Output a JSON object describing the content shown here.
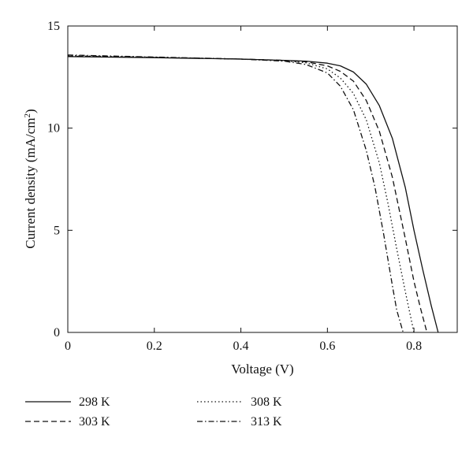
{
  "chart_data": {
    "type": "line",
    "title": "",
    "xlabel": "Voltage (V)",
    "ylabel_main": "Current density (mA/cm",
    "ylabel_sup": "2",
    "ylabel_end": ")",
    "xlim": [
      0,
      0.9
    ],
    "ylim": [
      0,
      15
    ],
    "xticks": [
      0,
      0.2,
      0.4,
      0.6,
      0.8
    ],
    "xtick_labels": [
      "0",
      "0.2",
      "0.4",
      "0.6",
      "0.8"
    ],
    "yticks": [
      0,
      5,
      10,
      15
    ],
    "ytick_labels": [
      "0",
      "5",
      "10",
      "15"
    ],
    "grid": false,
    "legend_position": "bottom-left, below plot",
    "series": [
      {
        "name": "298 K",
        "dash": "solid",
        "x": [
          0,
          0.2,
          0.4,
          0.5,
          0.55,
          0.6,
          0.63,
          0.66,
          0.69,
          0.72,
          0.75,
          0.78,
          0.8,
          0.82,
          0.84,
          0.856
        ],
        "y": [
          13.5,
          13.45,
          13.38,
          13.32,
          13.28,
          13.18,
          13.05,
          12.75,
          12.15,
          11.1,
          9.5,
          7.1,
          5.0,
          3.1,
          1.3,
          0
        ]
      },
      {
        "name": "303 K",
        "dash": "dashed",
        "x": [
          0,
          0.2,
          0.4,
          0.5,
          0.55,
          0.6,
          0.63,
          0.66,
          0.69,
          0.72,
          0.75,
          0.78,
          0.8,
          0.815,
          0.83
        ],
        "y": [
          13.52,
          13.46,
          13.38,
          13.32,
          13.25,
          13.05,
          12.78,
          12.3,
          11.35,
          9.85,
          7.6,
          4.6,
          2.5,
          1.2,
          0
        ]
      },
      {
        "name": "308 K",
        "dash": "dotted",
        "x": [
          0,
          0.2,
          0.4,
          0.5,
          0.55,
          0.6,
          0.63,
          0.66,
          0.69,
          0.72,
          0.74,
          0.76,
          0.78,
          0.8
        ],
        "y": [
          13.55,
          13.47,
          13.38,
          13.3,
          13.2,
          12.9,
          12.45,
          11.7,
          10.4,
          8.3,
          6.3,
          4.1,
          2.0,
          0
        ]
      },
      {
        "name": "313 K",
        "dash": "dashdot",
        "x": [
          0,
          0.2,
          0.4,
          0.5,
          0.55,
          0.6,
          0.63,
          0.66,
          0.69,
          0.71,
          0.73,
          0.75,
          0.76,
          0.775
        ],
        "y": [
          13.58,
          13.48,
          13.38,
          13.28,
          13.12,
          12.7,
          12.05,
          10.9,
          8.9,
          7.1,
          4.8,
          2.3,
          1.1,
          0
        ]
      }
    ],
    "line_color": "#111111"
  }
}
